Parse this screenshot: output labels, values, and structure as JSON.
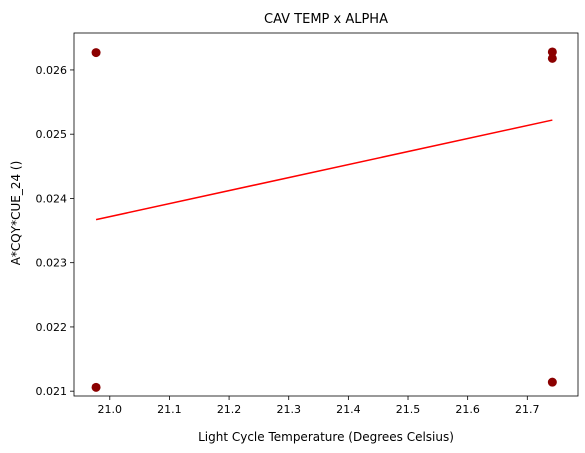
{
  "chart_data": {
    "type": "scatter",
    "title": "CAV TEMP x ALPHA",
    "xlabel": "Light Cycle Temperature (Degrees Celsius)",
    "ylabel": "A*CQY*CUE_24 ()",
    "xlim": [
      20.94,
      21.785
    ],
    "ylim": [
      0.020925,
      0.026575
    ],
    "xticks": [
      20.9,
      21.0,
      21.1,
      21.2,
      21.3,
      21.4,
      21.5,
      21.6,
      21.7
    ],
    "xtick_labels": [
      "20.9",
      "21.0",
      "21.1",
      "21.2",
      "21.3",
      "21.4",
      "21.5",
      "21.6",
      "21.7"
    ],
    "yticks": [
      0.021,
      0.022,
      0.023,
      0.024,
      0.025,
      0.026
    ],
    "ytick_labels": [
      "0.021",
      "0.022",
      "0.023",
      "0.024",
      "0.025",
      "0.026"
    ],
    "grid": false,
    "legend": "none",
    "series": [
      {
        "kind": "scatter",
        "color": "#8b0000",
        "points": [
          {
            "x": 20.977,
            "y": 0.02627
          },
          {
            "x": 20.977,
            "y": 0.02106
          },
          {
            "x": 21.742,
            "y": 0.02628
          },
          {
            "x": 21.742,
            "y": 0.02618
          },
          {
            "x": 21.742,
            "y": 0.02114
          }
        ]
      },
      {
        "kind": "line",
        "color": "#ff0000",
        "points": [
          {
            "x": 20.977,
            "y": 0.02367
          },
          {
            "x": 21.742,
            "y": 0.02522
          }
        ]
      }
    ]
  }
}
